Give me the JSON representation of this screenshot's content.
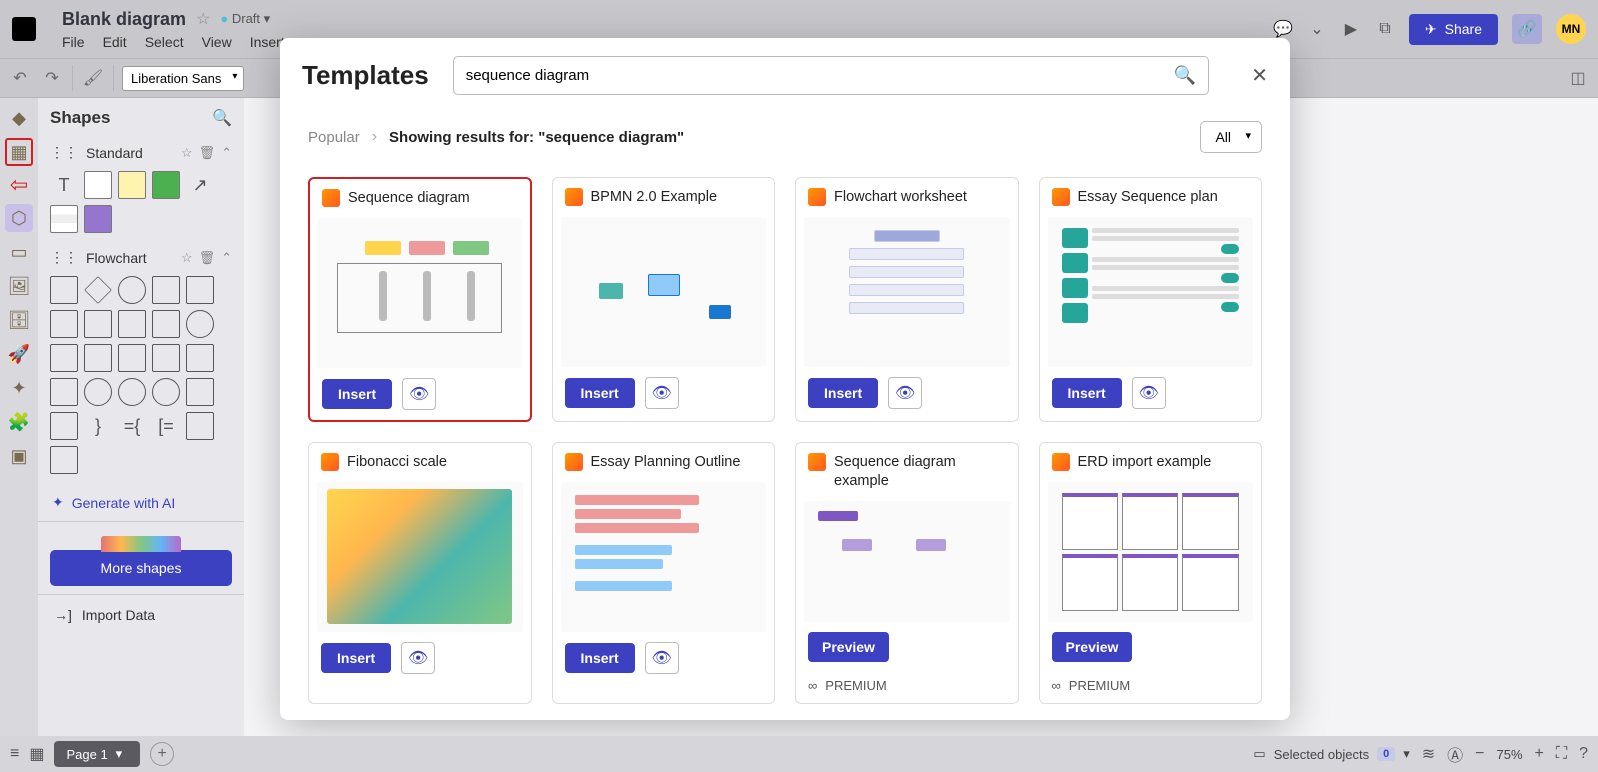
{
  "header": {
    "title": "Blank diagram",
    "draft_label": "Draft",
    "menu": [
      "File",
      "Edit",
      "Select",
      "View",
      "Insert"
    ],
    "share_label": "Share",
    "avatar": "MN"
  },
  "toolbar": {
    "font": "Liberation Sans"
  },
  "shapes_panel": {
    "title": "Shapes",
    "sections": {
      "standard": "Standard",
      "flowchart": "Flowchart"
    },
    "generate_label": "Generate with AI",
    "more_shapes_label": "More shapes",
    "import_label": "Import Data"
  },
  "modal": {
    "title": "Templates",
    "search_value": "sequence diagram",
    "crumb_popular": "Popular",
    "crumb_results": "Showing results for: \"sequence diagram\"",
    "filter": "All",
    "insert_label": "Insert",
    "preview_label": "Preview",
    "premium_label": "PREMIUM",
    "cards": [
      {
        "name": "Sequence diagram",
        "action": "insert",
        "thumb": "seq",
        "highlight": true
      },
      {
        "name": "BPMN 2.0 Example",
        "action": "insert",
        "thumb": "bpmn"
      },
      {
        "name": "Flowchart worksheet",
        "action": "insert",
        "thumb": "flow"
      },
      {
        "name": "Essay Sequence plan",
        "action": "insert",
        "thumb": "essay"
      },
      {
        "name": "Fibonacci scale",
        "action": "insert",
        "thumb": "fib"
      },
      {
        "name": "Essay Planning Outline",
        "action": "insert",
        "thumb": "plan"
      },
      {
        "name": "Sequence diagram example",
        "action": "preview",
        "thumb": "seqex",
        "premium": true
      },
      {
        "name": "ERD import example",
        "action": "preview",
        "thumb": "erd",
        "premium": true
      }
    ]
  },
  "bottom": {
    "page_label": "Page 1",
    "selected_label": "Selected objects",
    "selected_count": "0",
    "zoom": "75%"
  },
  "colors": {
    "primary": "#3c41c2",
    "accent_red": "#d02020",
    "avatar_bg": "#ffd54f"
  }
}
